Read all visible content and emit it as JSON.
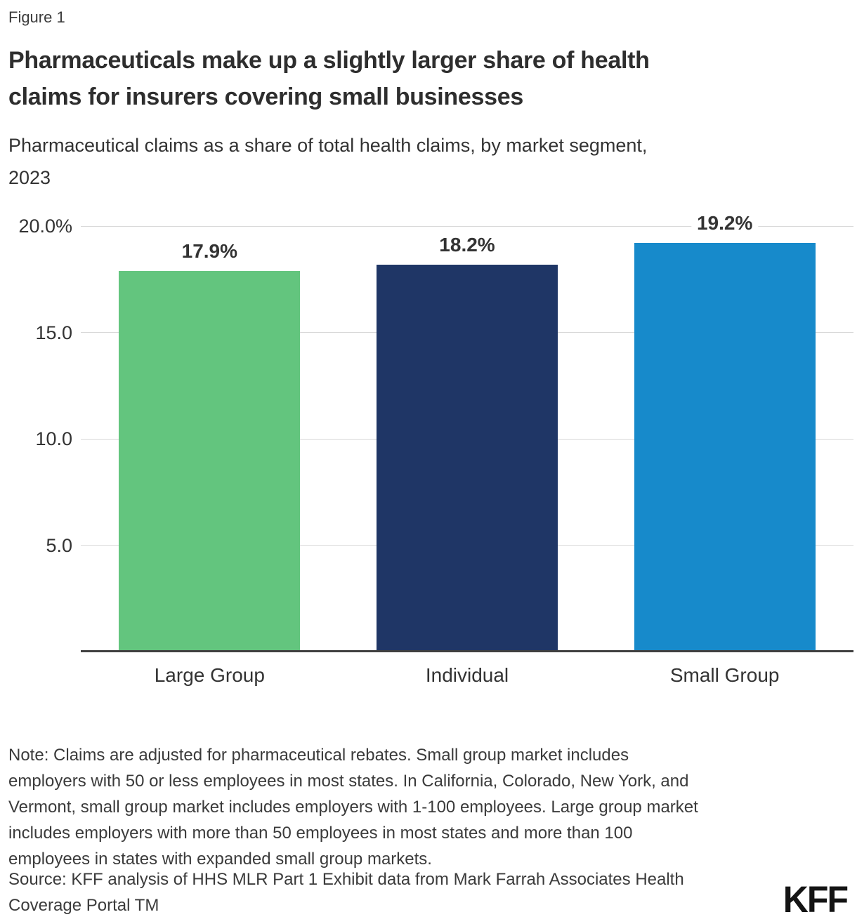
{
  "figure_label": "Figure 1",
  "title_lines": [
    "Pharmaceuticals make up a slightly larger share of health",
    "claims for insurers covering small businesses"
  ],
  "subtitle_lines": [
    "Pharmaceutical claims as a share of total health claims, by market segment,",
    "2023"
  ],
  "chart_data": {
    "type": "bar",
    "title": "Pharmaceuticals make up a slightly larger share of health claims for insurers covering small businesses",
    "subtitle": "Pharmaceutical claims as a share of total health claims, by market segment, 2023",
    "categories": [
      "Large Group",
      "Individual",
      "Small Group"
    ],
    "values": [
      17.9,
      18.2,
      19.2
    ],
    "value_labels": [
      "17.9%",
      "18.2%",
      "19.2%"
    ],
    "bar_colors": [
      "#63c57e",
      "#1f3666",
      "#178acb"
    ],
    "xlabel": "",
    "ylabel": "",
    "ylim": [
      0,
      20
    ],
    "yticks": [
      {
        "value": 20,
        "label": "20.0%"
      },
      {
        "value": 15,
        "label": "15.0"
      },
      {
        "value": 10,
        "label": "10.0"
      },
      {
        "value": 5,
        "label": "5.0"
      }
    ],
    "grid": "horizontal",
    "gridline_color": "#d9d9d9",
    "axis_line_color": "#404040",
    "legend": "none"
  },
  "footer": {
    "note_lines": [
      "Note: Claims are adjusted for pharmaceutical rebates. Small group market includes",
      "employers with 50 or less employees in most states. In California, Colorado, New York, and",
      "Vermont, small group market includes employers with 1-100 employees. Large group market",
      "includes employers with more than 50 employees in most states and more than 100",
      "employees in states with expanded small group markets."
    ],
    "source_lines": [
      "Source: KFF analysis of HHS MLR Part 1 Exhibit data from Mark Farrah Associates Health",
      "Coverage Portal TM"
    ],
    "logo_text": "KFF"
  }
}
